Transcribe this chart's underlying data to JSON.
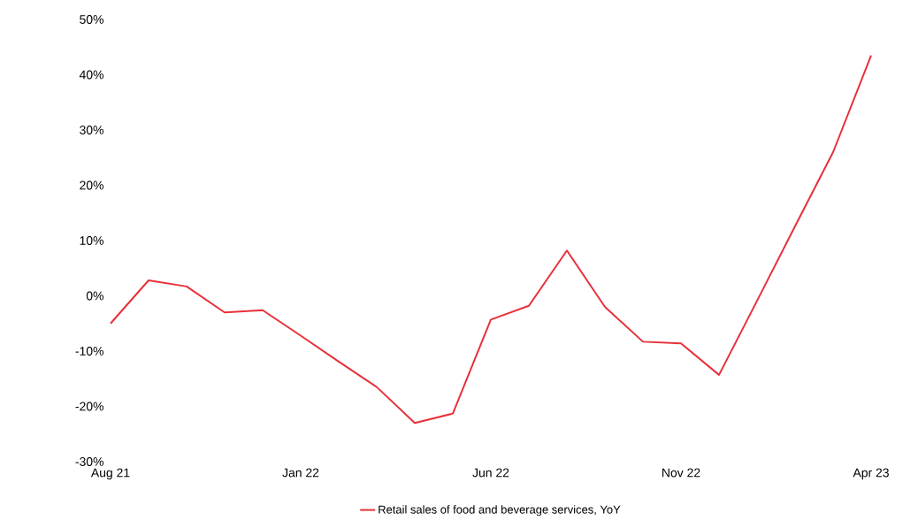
{
  "chart_data": {
    "type": "line",
    "categories": [
      "Aug 21",
      null,
      null,
      null,
      null,
      "Jan 22",
      null,
      null,
      null,
      null,
      "Jun 22",
      null,
      null,
      null,
      null,
      "Nov 22",
      null,
      null,
      null,
      null,
      "Apr 23"
    ],
    "series": [
      {
        "name": "Retail sales of food and beverage services, YoY",
        "color": "#e8303a",
        "values": [
          -5,
          2.8,
          1.7,
          -3,
          -2.6,
          -7.2,
          -11.9,
          -16.5,
          -23,
          -21.3,
          -4.3,
          -1.8,
          8.2,
          -2,
          -8.3,
          -8.6,
          -14.3,
          -0.9,
          12.6,
          26,
          43.5
        ]
      }
    ],
    "ylim": [
      -30,
      50
    ],
    "yticks": [
      {
        "value": -30,
        "label": "-30%"
      },
      {
        "value": -20,
        "label": "-20%"
      },
      {
        "value": -10,
        "label": "-10%"
      },
      {
        "value": 0,
        "label": "0%"
      },
      {
        "value": 10,
        "label": "10%"
      },
      {
        "value": 20,
        "label": "20%"
      },
      {
        "value": 30,
        "label": "30%"
      },
      {
        "value": 40,
        "label": "40%"
      },
      {
        "value": 50,
        "label": "50%"
      }
    ],
    "legend": "bottom"
  }
}
